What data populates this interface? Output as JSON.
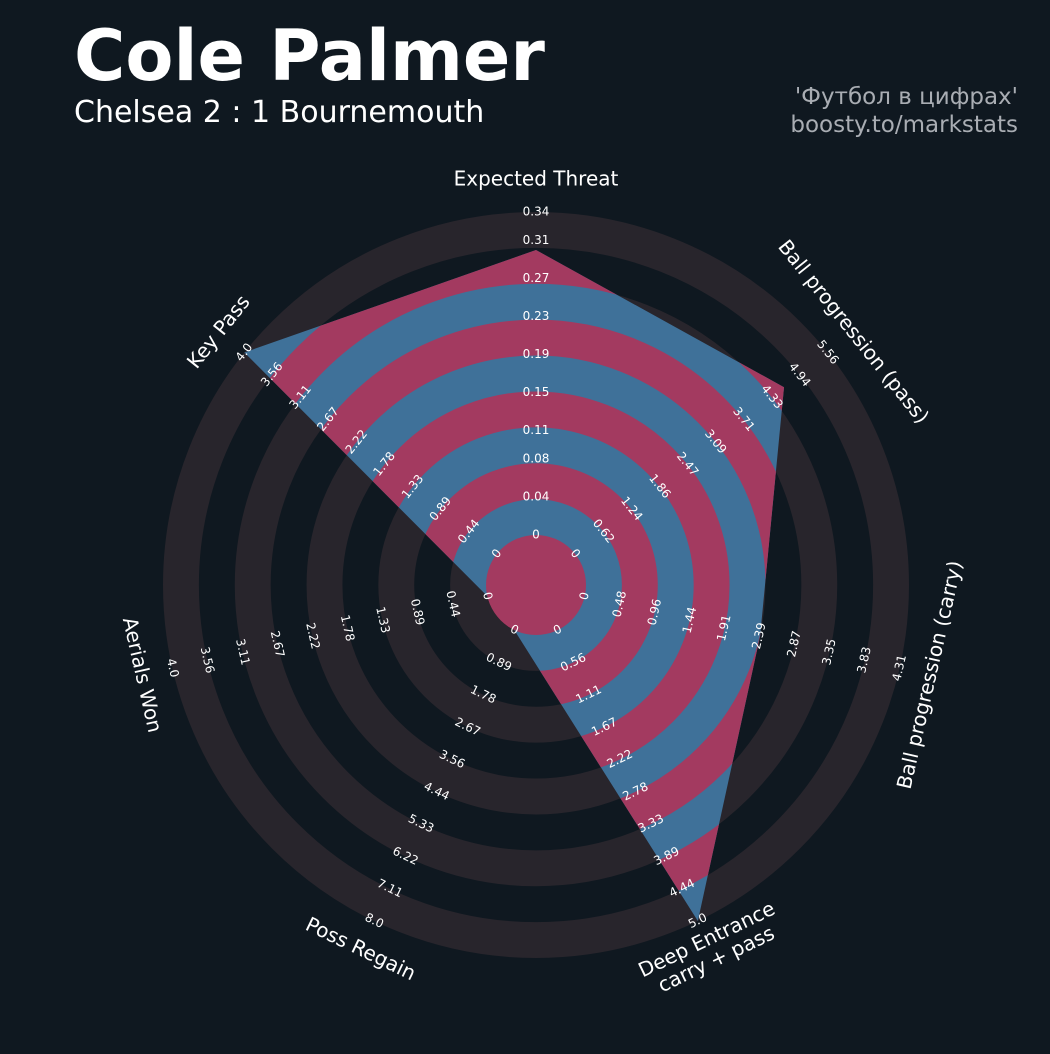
{
  "chart_data": {
    "type": "radar",
    "title": "Cole Palmer",
    "subtitle": "Chelsea 2 : 1 Bournemouth",
    "credits": [
      "'Футбол в цифрах'",
      "boosty.to/markstats"
    ],
    "background": "#0f1820",
    "ring_color": "#28252c",
    "color": "#3f7199",
    "alt_color": "#a33a60",
    "params": [
      {
        "label": "Expected Threat",
        "lim": [
          0.0,
          0.34
        ],
        "ticks": [
          0.0,
          0.04,
          0.08,
          0.11,
          0.15,
          0.19,
          0.23,
          0.27,
          0.31,
          0.34
        ]
      },
      {
        "label": "Ball progression (pass)",
        "lim": [
          0.0,
          5.56
        ],
        "ticks": [
          0.0,
          0.62,
          1.24,
          1.86,
          2.47,
          3.09,
          3.71,
          4.33,
          4.94,
          5.56
        ]
      },
      {
        "label": "Ball progression (carry)",
        "lim": [
          0.0,
          4.31
        ],
        "ticks": [
          0.0,
          0.48,
          0.96,
          1.44,
          1.91,
          2.39,
          2.87,
          3.35,
          3.83,
          4.31
        ]
      },
      {
        "label": "Deep Entrance\ncarry + pass",
        "lim": [
          0.0,
          5.0
        ],
        "ticks": [
          0.0,
          0.56,
          1.11,
          1.67,
          2.22,
          2.78,
          3.33,
          3.89,
          4.44,
          {
            "value": 5.0,
            "label": "5.0"
          }
        ]
      },
      {
        "label": "Poss Regain",
        "lim": [
          0.0,
          8.0
        ],
        "ticks": [
          0.0,
          0.89,
          1.78,
          2.67,
          3.56,
          4.44,
          5.33,
          6.22,
          7.11,
          {
            "value": 8.0,
            "label": "8.0"
          }
        ]
      },
      {
        "label": "Aerials Won",
        "lim": [
          0.0,
          4.0
        ],
        "ticks": [
          0.0,
          0.44,
          0.89,
          1.33,
          1.78,
          2.22,
          2.67,
          3.11,
          3.56,
          {
            "value": 4.0,
            "label": "4.0"
          }
        ]
      },
      {
        "label": "Key Pass",
        "lim": [
          0.0,
          4.0
        ],
        "ticks": [
          0.0,
          0.44,
          0.89,
          1.33,
          1.78,
          2.22,
          2.67,
          3.11,
          3.56,
          {
            "value": 4.0,
            "label": "4.0"
          }
        ]
      }
    ],
    "values": [
      0.3,
      4.6,
      2.4,
      5.0,
      0.0,
      0.0,
      4.0
    ]
  }
}
